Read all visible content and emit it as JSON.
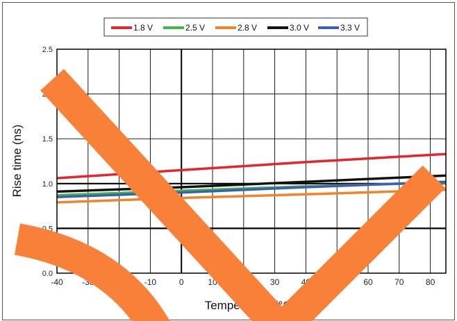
{
  "chart_data": {
    "type": "line",
    "title": "",
    "xlabel": "Temperature (°C)",
    "ylabel": "Rise time (ns)",
    "xlim": [
      -40,
      85
    ],
    "ylim": [
      0.0,
      2.5
    ],
    "x_ticks": [
      -40,
      -30,
      -20,
      -10,
      0,
      10,
      20,
      30,
      40,
      50,
      60,
      70,
      80
    ],
    "y_ticks": [
      "0.0",
      "0.5",
      "1.0",
      "1.5",
      "2.0",
      "2.5"
    ],
    "reference_lines_y": [
      0.5,
      1.0
    ],
    "grid": true,
    "legend_position": "top-center",
    "x": [
      -40,
      0,
      40,
      85
    ],
    "series": [
      {
        "name": "1.8 V",
        "color": "#e8242a",
        "values": [
          1.06,
          1.15,
          1.24,
          1.33
        ]
      },
      {
        "name": "2.5 V",
        "color": "#44b549",
        "values": [
          0.87,
          0.92,
          0.97,
          1.01
        ]
      },
      {
        "name": "2.8 V",
        "color": "#f3832a",
        "values": [
          0.79,
          0.84,
          0.88,
          0.93
        ]
      },
      {
        "name": "3.0 V",
        "color": "#111111",
        "values": [
          0.91,
          0.96,
          1.02,
          1.09
        ]
      },
      {
        "name": "3.3 V",
        "color": "#3b5fb5",
        "values": [
          0.85,
          0.9,
          0.96,
          1.02
        ]
      }
    ]
  },
  "watermark": {
    "color": "#f98038"
  }
}
